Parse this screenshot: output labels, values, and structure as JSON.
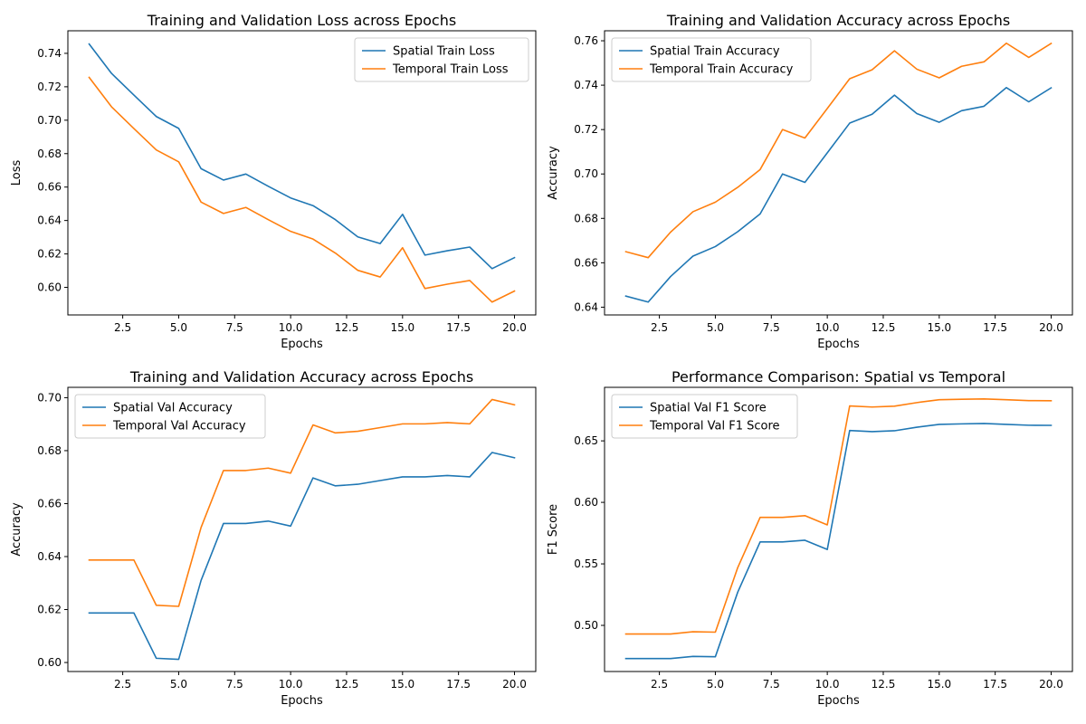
{
  "colors": {
    "series1": "#1f77b4",
    "series2": "#ff7f0e"
  },
  "chart_data": [
    {
      "type": "line",
      "title": "Training and Validation Loss across Epochs",
      "xlabel": "Epochs",
      "ylabel": "Loss",
      "xlim": [
        0.05,
        20.95
      ],
      "ylim": [
        0.5835,
        0.7535
      ],
      "xticks": [
        2.5,
        5.0,
        7.5,
        10.0,
        12.5,
        15.0,
        17.5,
        20.0
      ],
      "xtick_labels": [
        "2.5",
        "5.0",
        "7.5",
        "10.0",
        "12.5",
        "15.0",
        "17.5",
        "20.0"
      ],
      "yticks": [
        0.6,
        0.62,
        0.64,
        0.66,
        0.68,
        0.7,
        0.72,
        0.74
      ],
      "ytick_labels": [
        "0.60",
        "0.62",
        "0.64",
        "0.66",
        "0.68",
        "0.70",
        "0.72",
        "0.74"
      ],
      "legend": "top-right",
      "grid": false,
      "x": [
        1,
        2,
        3,
        4,
        5,
        6,
        7,
        8,
        9,
        10,
        11,
        12,
        13,
        14,
        15,
        16,
        17,
        18,
        19,
        20
      ],
      "series": [
        {
          "name": "Spatial Train Loss",
          "values": [
            0.7456,
            0.728,
            0.715,
            0.7022,
            0.6951,
            0.671,
            0.6642,
            0.6678,
            0.6605,
            0.6535,
            0.6489,
            0.6405,
            0.6302,
            0.6262,
            0.6437,
            0.6193,
            0.6219,
            0.6241,
            0.6112,
            0.6178
          ]
        },
        {
          "name": "Temporal Train Loss",
          "values": [
            0.7256,
            0.708,
            0.695,
            0.6822,
            0.6751,
            0.651,
            0.6442,
            0.6478,
            0.6405,
            0.6335,
            0.6289,
            0.6205,
            0.6102,
            0.6062,
            0.6237,
            0.5993,
            0.6019,
            0.6041,
            0.5912,
            0.5978
          ]
        }
      ]
    },
    {
      "type": "line",
      "title": "Training and Validation Accuracy across Epochs",
      "xlabel": "Epochs",
      "ylabel": "Accuracy",
      "xlim": [
        0.05,
        20.95
      ],
      "ylim": [
        0.6365,
        0.7645
      ],
      "xticks": [
        2.5,
        5.0,
        7.5,
        10.0,
        12.5,
        15.0,
        17.5,
        20.0
      ],
      "xtick_labels": [
        "2.5",
        "5.0",
        "7.5",
        "10.0",
        "12.5",
        "15.0",
        "17.5",
        "20.0"
      ],
      "yticks": [
        0.64,
        0.66,
        0.68,
        0.7,
        0.72,
        0.74,
        0.76
      ],
      "ytick_labels": [
        "0.64",
        "0.66",
        "0.68",
        "0.70",
        "0.72",
        "0.74",
        "0.76"
      ],
      "legend": "top-left",
      "grid": false,
      "x": [
        1,
        2,
        3,
        4,
        5,
        6,
        7,
        8,
        9,
        10,
        11,
        12,
        13,
        14,
        15,
        16,
        17,
        18,
        19,
        20
      ],
      "series": [
        {
          "name": "Spatial Train Accuracy",
          "values": [
            0.645,
            0.6423,
            0.6538,
            0.663,
            0.6673,
            0.674,
            0.682,
            0.7,
            0.6962,
            0.7095,
            0.7229,
            0.7269,
            0.7355,
            0.7272,
            0.7233,
            0.7285,
            0.7305,
            0.7389,
            0.7325,
            0.7388
          ]
        },
        {
          "name": "Temporal Train Accuracy",
          "values": [
            0.665,
            0.6623,
            0.6738,
            0.683,
            0.6873,
            0.694,
            0.702,
            0.72,
            0.7162,
            0.7295,
            0.7429,
            0.7469,
            0.7555,
            0.7472,
            0.7433,
            0.7485,
            0.7505,
            0.7589,
            0.7525,
            0.7588
          ]
        }
      ]
    },
    {
      "type": "line",
      "title": "Training and Validation Accuracy across Epochs",
      "xlabel": "Epochs",
      "ylabel": "Accuracy",
      "xlim": [
        0.05,
        20.95
      ],
      "ylim": [
        0.5966,
        0.7039
      ],
      "xticks": [
        2.5,
        5.0,
        7.5,
        10.0,
        12.5,
        15.0,
        17.5,
        20.0
      ],
      "xtick_labels": [
        "2.5",
        "5.0",
        "7.5",
        "10.0",
        "12.5",
        "15.0",
        "17.5",
        "20.0"
      ],
      "yticks": [
        0.6,
        0.62,
        0.64,
        0.66,
        0.68,
        0.7
      ],
      "ytick_labels": [
        "0.60",
        "0.62",
        "0.64",
        "0.66",
        "0.68",
        "0.70"
      ],
      "legend": "top-left",
      "grid": false,
      "x": [
        1,
        2,
        3,
        4,
        5,
        6,
        7,
        8,
        9,
        10,
        11,
        12,
        13,
        14,
        15,
        16,
        17,
        18,
        19,
        20
      ],
      "series": [
        {
          "name": "Spatial Val Accuracy",
          "values": [
            0.6187,
            0.6187,
            0.6187,
            0.6016,
            0.6012,
            0.631,
            0.6525,
            0.6525,
            0.6534,
            0.6515,
            0.6697,
            0.6667,
            0.6673,
            0.6687,
            0.6701,
            0.6701,
            0.6706,
            0.6701,
            0.6793,
            0.6773
          ]
        },
        {
          "name": "Temporal Val Accuracy",
          "values": [
            0.6387,
            0.6387,
            0.6387,
            0.6216,
            0.6212,
            0.651,
            0.6725,
            0.6725,
            0.6734,
            0.6715,
            0.6897,
            0.6867,
            0.6873,
            0.6887,
            0.6901,
            0.6901,
            0.6906,
            0.6901,
            0.6993,
            0.6973
          ]
        }
      ]
    },
    {
      "type": "line",
      "title": "Performance Comparison: Spatial vs Temporal",
      "xlabel": "Epochs",
      "ylabel": "F1 Score",
      "xlim": [
        0.05,
        20.95
      ],
      "ylim": [
        0.4625,
        0.6935
      ],
      "xticks": [
        2.5,
        5.0,
        7.5,
        10.0,
        12.5,
        15.0,
        17.5,
        20.0
      ],
      "xtick_labels": [
        "2.5",
        "5.0",
        "7.5",
        "10.0",
        "12.5",
        "15.0",
        "17.5",
        "20.0"
      ],
      "yticks": [
        0.5,
        0.55,
        0.6,
        0.65
      ],
      "ytick_labels": [
        "0.50",
        "0.55",
        "0.60",
        "0.65"
      ],
      "legend": "top-left",
      "grid": false,
      "x": [
        1,
        2,
        3,
        4,
        5,
        6,
        7,
        8,
        9,
        10,
        11,
        12,
        13,
        14,
        15,
        16,
        17,
        18,
        19,
        20
      ],
      "series": [
        {
          "name": "Spatial Val F1 Score",
          "values": [
            0.473,
            0.473,
            0.473,
            0.4748,
            0.4745,
            0.527,
            0.5678,
            0.5678,
            0.5692,
            0.5617,
            0.6584,
            0.6575,
            0.6582,
            0.6611,
            0.6634,
            0.6638,
            0.6641,
            0.6634,
            0.6627,
            0.6626
          ]
        },
        {
          "name": "Temporal Val F1 Score",
          "values": [
            0.493,
            0.493,
            0.493,
            0.4948,
            0.4945,
            0.547,
            0.5878,
            0.5878,
            0.5892,
            0.5817,
            0.6784,
            0.6775,
            0.6782,
            0.6811,
            0.6834,
            0.6838,
            0.6841,
            0.6834,
            0.6827,
            0.6826
          ]
        }
      ]
    }
  ]
}
